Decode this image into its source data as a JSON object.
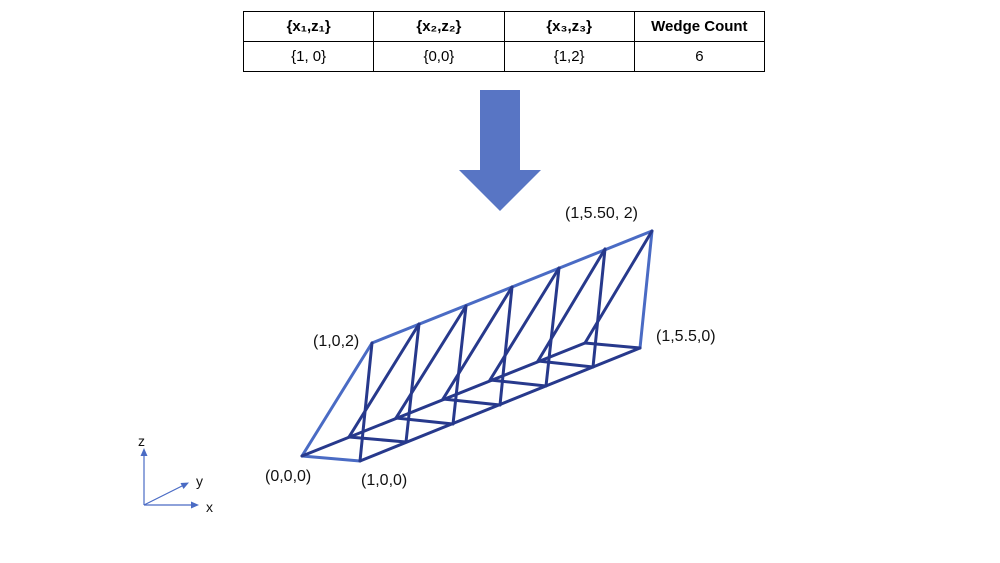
{
  "table": {
    "headers": [
      "{x₁,z₁}",
      "{x₂,z₂}",
      "{x₃,z₃}",
      "Wedge Count"
    ],
    "values": [
      "{1, 0}",
      "{0,0}",
      "{1,2}",
      "6"
    ]
  },
  "diagram": {
    "vertex_labels": {
      "origin": "(0,0,0)",
      "x_end": "(1,0,0)",
      "top_start": "(1,0,2)",
      "top_end": "(1,5.50, 2)",
      "base_end": "(1,5.5,0)"
    },
    "axes": {
      "x": "x",
      "y": "y",
      "z": "z"
    },
    "wedge_count": 6,
    "colors": {
      "outer_frame": "#4a6bc4",
      "inner_edges": "#27398c",
      "arrow": "#5875c4"
    }
  }
}
